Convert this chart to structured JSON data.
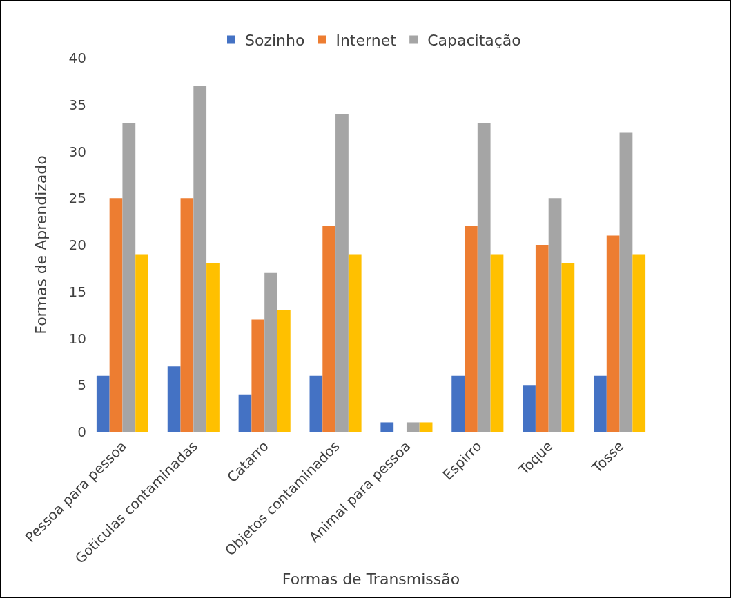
{
  "chart_data": {
    "type": "bar",
    "xlabel": "Formas de Transmissão",
    "ylabel": "Formas de Aprendizado",
    "categories": [
      "Pessoa para pessoa",
      "Goticulas contaminadas",
      "Catarro",
      "Objetos contaminados",
      "Animal para pessoa",
      "Espirro",
      "Toque",
      "Tosse"
    ],
    "series": [
      {
        "name": "Sozinho",
        "color": "#4472c4",
        "values": [
          6,
          7,
          4,
          6,
          1,
          6,
          5,
          6
        ]
      },
      {
        "name": "Internet",
        "color": "#ed7d31",
        "values": [
          25,
          25,
          12,
          22,
          0,
          22,
          20,
          21
        ]
      },
      {
        "name": "Capacitação",
        "color": "#a5a5a5",
        "values": [
          33,
          37,
          17,
          34,
          1,
          33,
          25,
          32
        ]
      },
      {
        "color": "#ffc000",
        "values": [
          19,
          18,
          13,
          19,
          1,
          19,
          18,
          19
        ]
      }
    ],
    "ylim": [
      0,
      40
    ],
    "yticks": [
      0,
      5,
      10,
      15,
      20,
      25,
      30,
      35,
      40
    ],
    "grid": false,
    "legend": "top"
  }
}
